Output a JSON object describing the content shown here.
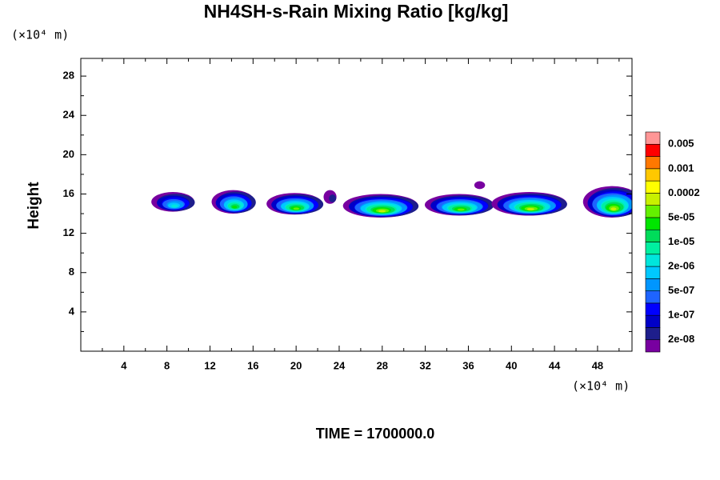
{
  "chart_data": {
    "type": "contour",
    "title": "NH4SH-s-Rain Mixing Ratio [kg/kg]",
    "y_label": "Height",
    "y_unit": "(×10⁴ m)",
    "x_unit": "(×10⁴ m)",
    "footer": "TIME = 1700000.0",
    "xlim": [
      0,
      51.2
    ],
    "ylim": [
      0,
      29.8
    ],
    "xticks": [
      4,
      8,
      12,
      16,
      20,
      24,
      28,
      32,
      36,
      40,
      44,
      48
    ],
    "yticks": [
      4,
      8,
      12,
      16,
      20,
      24,
      28
    ],
    "xticks_minor": [
      2,
      6,
      10,
      14,
      18,
      22,
      26,
      30,
      34,
      38,
      42,
      46,
      50
    ],
    "yticks_minor": [
      2,
      6,
      10,
      14,
      18,
      22,
      26
    ],
    "colors": [
      "#7800a0",
      "#1e1e8c",
      "#0000c8",
      "#0000ff",
      "#1e64ff",
      "#0096ff",
      "#00c8ff",
      "#00e6dc",
      "#00f0a0",
      "#00dc5a",
      "#00e600",
      "#64f000",
      "#c8f000",
      "#ffff00",
      "#ffc800",
      "#ff7800",
      "#ff0000",
      "#ff9696"
    ],
    "levels": [
      "2e-08",
      "1e-07",
      "5e-07",
      "2e-06",
      "1e-05",
      "5e-05",
      "0.0002",
      "0.001",
      "0.005"
    ],
    "cells": [
      {
        "x": 8.7,
        "y": 15.2,
        "rx": 2.0,
        "ry": 1.0,
        "peak": 7
      },
      {
        "x": 14.3,
        "y": 15.2,
        "rx": 2.0,
        "ry": 1.2,
        "peak": 10
      },
      {
        "x": 20.0,
        "y": 15.0,
        "rx": 2.6,
        "ry": 1.1,
        "peak": 11
      },
      {
        "x": 23.3,
        "y": 15.7,
        "rx": 0.6,
        "ry": 0.7,
        "peak": 1
      },
      {
        "x": 28.0,
        "y": 14.8,
        "rx": 3.5,
        "ry": 1.2,
        "peak": 12
      },
      {
        "x": 35.3,
        "y": 14.9,
        "rx": 3.2,
        "ry": 1.1,
        "peak": 11
      },
      {
        "x": 37.2,
        "y": 16.9,
        "rx": 0.5,
        "ry": 0.4,
        "peak": 0
      },
      {
        "x": 41.8,
        "y": 15.0,
        "rx": 3.5,
        "ry": 1.2,
        "peak": 12
      },
      {
        "x": 49.5,
        "y": 15.2,
        "rx": 2.7,
        "ry": 1.6,
        "peak": 12
      }
    ]
  }
}
